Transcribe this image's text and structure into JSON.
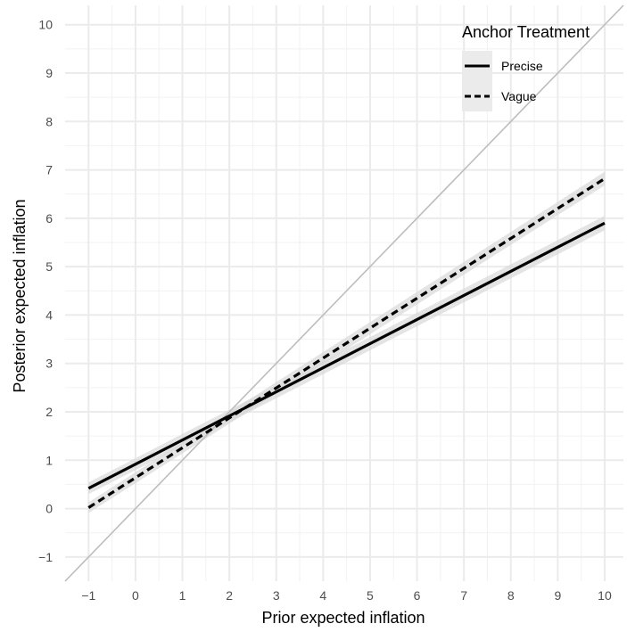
{
  "chart_data": {
    "type": "line",
    "title": "",
    "xlabel": "Prior expected inflation",
    "ylabel": "Posterior expected inflation",
    "xlim": [
      -1.5,
      10.4
    ],
    "ylim": [
      -1.5,
      10.4
    ],
    "x_ticks": [
      -1,
      0,
      1,
      2,
      3,
      4,
      5,
      6,
      7,
      8,
      9,
      10
    ],
    "y_ticks": [
      -1,
      0,
      1,
      2,
      3,
      4,
      5,
      6,
      7,
      8,
      9,
      10
    ],
    "x_tick_labels": [
      "−1",
      "0",
      "1",
      "2",
      "3",
      "4",
      "5",
      "6",
      "7",
      "8",
      "9",
      "10"
    ],
    "y_tick_labels": [
      "−1",
      "0",
      "1",
      "2",
      "3",
      "4",
      "5",
      "6",
      "7",
      "8",
      "9",
      "10"
    ],
    "grid": true,
    "legend": {
      "title": "Anchor Treatment",
      "position": "top-right"
    },
    "reference_line": {
      "type": "45-degree",
      "color": "#bdbdbd",
      "x": [
        -1.5,
        10.4
      ],
      "y": [
        -1.5,
        10.4
      ]
    },
    "series": [
      {
        "name": "Precise",
        "style": "solid",
        "color": "#000000",
        "x": [
          -1,
          10
        ],
        "y": [
          0.42,
          5.9
        ],
        "ci_halfwidth": [
          0.12,
          0.15
        ]
      },
      {
        "name": "Vague",
        "style": "dashed",
        "color": "#000000",
        "x": [
          -1,
          10
        ],
        "y": [
          0.02,
          6.82
        ],
        "ci_halfwidth": [
          0.11,
          0.14
        ]
      }
    ],
    "ci_color": "#d9d9d9"
  }
}
